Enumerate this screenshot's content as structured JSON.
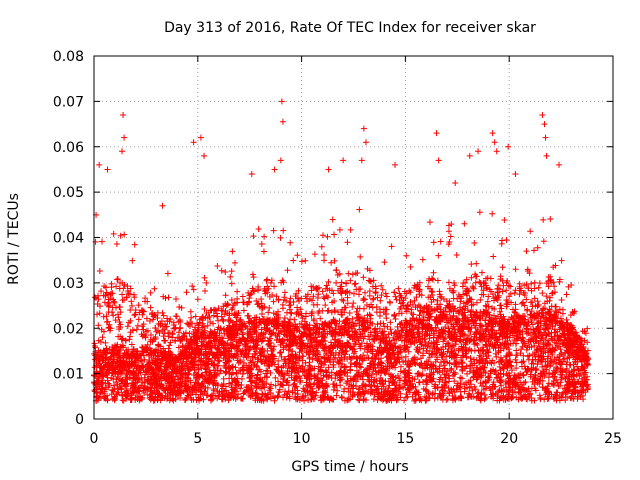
{
  "chart_data": {
    "type": "scatter",
    "title": "Day 313 of 2016, Rate Of TEC Index for receiver skar",
    "xlabel": "GPS time / hours",
    "ylabel": "ROTI / TECUs",
    "xlim": [
      0,
      25
    ],
    "ylim": [
      0,
      0.08
    ],
    "x_ticks": [
      "0",
      "5",
      "10",
      "15",
      "20",
      "25"
    ],
    "y_ticks": [
      "0",
      "0.01",
      "0.02",
      "0.03",
      "0.04",
      "0.05",
      "0.06",
      "0.07",
      "0.08"
    ],
    "grid": true,
    "marker": "+",
    "color": "#ff0000",
    "outliers": [
      {
        "x": 1.4,
        "y": 0.067
      },
      {
        "x": 1.45,
        "y": 0.062
      },
      {
        "x": 1.35,
        "y": 0.059
      },
      {
        "x": 0.25,
        "y": 0.056
      },
      {
        "x": 0.65,
        "y": 0.055
      },
      {
        "x": 0.1,
        "y": 0.045
      },
      {
        "x": 4.8,
        "y": 0.061
      },
      {
        "x": 5.15,
        "y": 0.062
      },
      {
        "x": 5.3,
        "y": 0.058
      },
      {
        "x": 7.6,
        "y": 0.054
      },
      {
        "x": 8.7,
        "y": 0.055
      },
      {
        "x": 9.05,
        "y": 0.07
      },
      {
        "x": 9.1,
        "y": 0.0655
      },
      {
        "x": 9.0,
        "y": 0.057
      },
      {
        "x": 11.3,
        "y": 0.055
      },
      {
        "x": 12.0,
        "y": 0.057
      },
      {
        "x": 13.0,
        "y": 0.064
      },
      {
        "x": 13.1,
        "y": 0.061
      },
      {
        "x": 12.9,
        "y": 0.057
      },
      {
        "x": 14.5,
        "y": 0.056
      },
      {
        "x": 16.5,
        "y": 0.063
      },
      {
        "x": 16.6,
        "y": 0.057
      },
      {
        "x": 18.1,
        "y": 0.058
      },
      {
        "x": 18.5,
        "y": 0.059
      },
      {
        "x": 19.2,
        "y": 0.063
      },
      {
        "x": 19.3,
        "y": 0.061
      },
      {
        "x": 19.4,
        "y": 0.059
      },
      {
        "x": 19.95,
        "y": 0.06
      },
      {
        "x": 21.6,
        "y": 0.067
      },
      {
        "x": 21.7,
        "y": 0.065
      },
      {
        "x": 21.75,
        "y": 0.062
      },
      {
        "x": 21.8,
        "y": 0.058
      },
      {
        "x": 22.4,
        "y": 0.056
      },
      {
        "x": 20.3,
        "y": 0.054
      },
      {
        "x": 17.4,
        "y": 0.052
      },
      {
        "x": 3.3,
        "y": 0.047
      }
    ],
    "envelope": {
      "description_hours": [
        0,
        1,
        2,
        3,
        4,
        5,
        6,
        7,
        8,
        9,
        10,
        11,
        12,
        13,
        14,
        15,
        16,
        17,
        18,
        19,
        20,
        21,
        22,
        23,
        23.8
      ],
      "typical_max": [
        0.04,
        0.045,
        0.04,
        0.035,
        0.03,
        0.033,
        0.035,
        0.04,
        0.043,
        0.045,
        0.04,
        0.043,
        0.045,
        0.05,
        0.04,
        0.04,
        0.045,
        0.043,
        0.045,
        0.048,
        0.043,
        0.043,
        0.045,
        0.03,
        0.02
      ],
      "typical_median": [
        0.01,
        0.012,
        0.011,
        0.011,
        0.01,
        0.014,
        0.014,
        0.015,
        0.016,
        0.016,
        0.015,
        0.015,
        0.016,
        0.016,
        0.013,
        0.015,
        0.018,
        0.018,
        0.017,
        0.017,
        0.016,
        0.017,
        0.017,
        0.014,
        0.012
      ]
    }
  }
}
